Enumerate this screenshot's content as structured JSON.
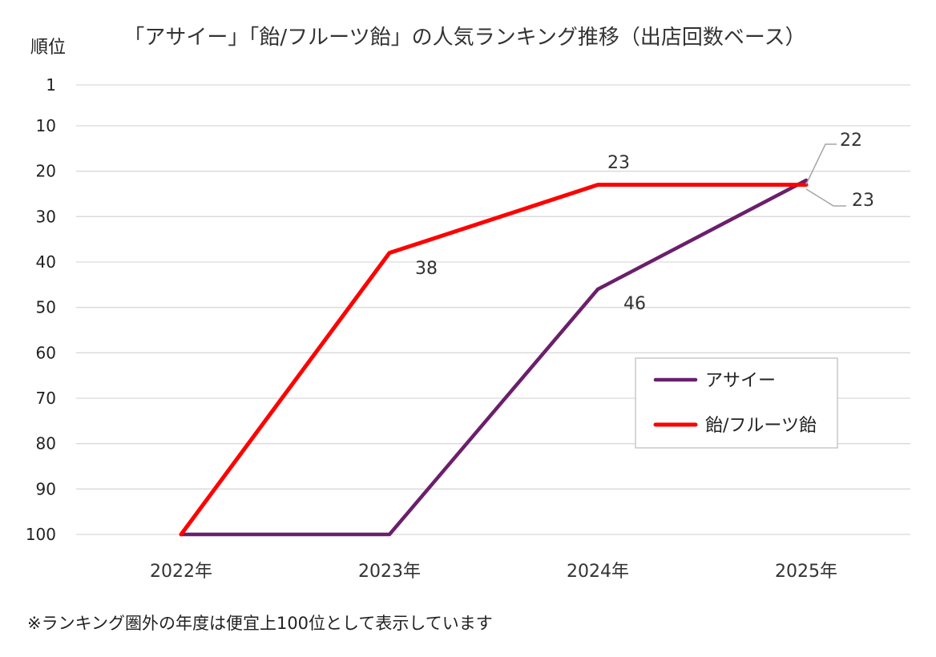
{
  "chart_data": {
    "type": "line",
    "title": "「アサイー」「飴/フルーツ飴」の人気ランキング推移（出店回数ベース）",
    "ylabel": "順位",
    "xlabel": "",
    "y_inverted": true,
    "ylim": [
      1,
      100
    ],
    "yticks": [
      1,
      10,
      20,
      30,
      40,
      50,
      60,
      70,
      80,
      90,
      100
    ],
    "categories": [
      "2022年",
      "2023年",
      "2024年",
      "2025年"
    ],
    "grid": true,
    "legend_position": "right-center",
    "series": [
      {
        "name": "アサイー",
        "color": "#6b1f6b",
        "values": [
          100,
          100,
          46,
          22
        ],
        "data_labels": [
          "",
          "",
          "46",
          "22"
        ]
      },
      {
        "name": "飴/フルーツ飴",
        "color": "#ff0000",
        "values": [
          100,
          38,
          23,
          23
        ],
        "data_labels": [
          "",
          "38",
          "23",
          "23"
        ]
      }
    ]
  },
  "footnote": "※ランキング圏外の年度は便宜上100位として表示しています"
}
